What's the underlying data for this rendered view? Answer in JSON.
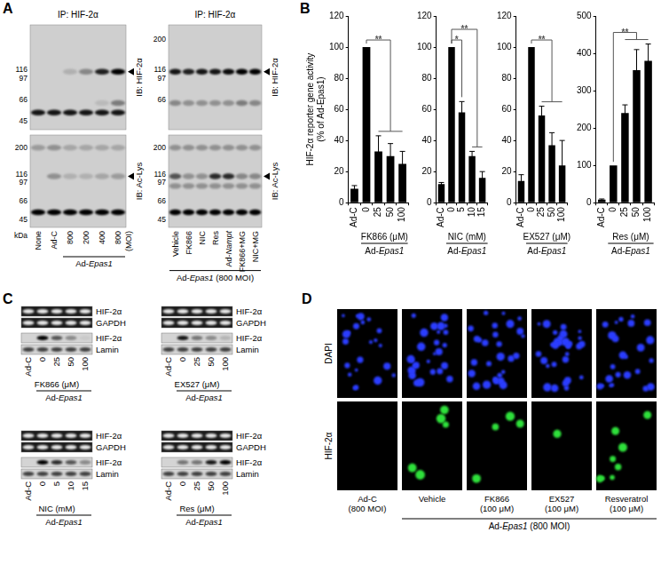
{
  "chart_data": [
    {
      "type": "bar",
      "y_label": [
        "HIF-2α reporter gene activity",
        "(% of Ad-Epas1)"
      ],
      "x_label": "FK866 (μM)",
      "group_label": {
        "text": "Ad-Epas1",
        "from": "0",
        "to": "100"
      },
      "categories": [
        "Ad-C",
        "0",
        "25",
        "50",
        "100"
      ],
      "values": [
        9,
        100,
        33,
        30,
        25
      ],
      "errors": [
        2,
        0,
        10,
        8,
        8
      ],
      "color": "#000000",
      "ylim": [
        0,
        120
      ],
      "yticks": [
        0,
        20,
        40,
        60,
        80,
        100,
        120
      ],
      "grid": false,
      "significance": [
        {
          "from": "0",
          "to": [
            "25",
            "50",
            "100"
          ],
          "label": "**"
        }
      ]
    },
    {
      "type": "bar",
      "x_label": "NIC (mM)",
      "group_label": {
        "text": "Ad-Epas1",
        "from": "0",
        "to": "15"
      },
      "categories": [
        "Ad-C",
        "0",
        "5",
        "10",
        "15"
      ],
      "values": [
        12,
        100,
        58,
        30,
        16
      ],
      "errors": [
        1,
        0,
        7,
        3,
        4
      ],
      "color": "#000000",
      "ylim": [
        0,
        120
      ],
      "yticks": [
        0,
        20,
        40,
        60,
        80,
        100,
        120
      ],
      "grid": false,
      "significance": [
        {
          "from": "0",
          "to": [
            "5"
          ],
          "label": "*"
        },
        {
          "from": "0",
          "to": [
            "10",
            "15"
          ],
          "label": "**"
        }
      ]
    },
    {
      "type": "bar",
      "x_label": "EX527 (μM)",
      "group_label": {
        "text": "Ad-Epas1",
        "from": "0",
        "to": "100"
      },
      "categories": [
        "Ad-C",
        "0",
        "25",
        "50",
        "100"
      ],
      "values": [
        14,
        100,
        56,
        37,
        24
      ],
      "errors": [
        4,
        0,
        6,
        8,
        16
      ],
      "color": "#000000",
      "ylim": [
        0,
        120
      ],
      "yticks": [
        0,
        20,
        40,
        60,
        80,
        100,
        120
      ],
      "grid": false,
      "significance": [
        {
          "from": "0",
          "to": [
            "25",
            "50",
            "100"
          ],
          "label": "**"
        }
      ]
    },
    {
      "type": "bar",
      "x_label": "Res (μM)",
      "group_label": {
        "text": "Ad-Epas1",
        "from": "0",
        "to": "100"
      },
      "categories": [
        "Ad-C",
        "0",
        "25",
        "50",
        "100"
      ],
      "values": [
        8,
        100,
        240,
        355,
        380
      ],
      "errors": [
        2,
        0,
        22,
        55,
        45
      ],
      "color": "#000000",
      "ylim": [
        0,
        500
      ],
      "yticks": [
        0,
        100,
        200,
        300,
        400,
        500
      ],
      "grid": false,
      "significance": [
        {
          "from": "0",
          "to": [
            "25",
            "50",
            "100"
          ],
          "label": "**"
        }
      ]
    }
  ],
  "panels": {
    "A": {
      "letter": "A",
      "blots": [
        {
          "title": "IP: HIF-2α",
          "lanes": [
            "None",
            "Ad-C",
            "800",
            "200",
            "400",
            "800"
          ],
          "lane_suffix": "(MOI)",
          "group": {
            "text": "Ad-Epas1",
            "from": 2,
            "to": 5
          },
          "kda_label": "kDa",
          "strips": [
            {
              "label": "IB: HIF-2α",
              "markers": [
                116,
                97,
                66,
                45
              ],
              "arrow": 110,
              "bands": [
                {
                  "kda": 110,
                  "intensity": [
                    0,
                    0,
                    0.15,
                    0.35,
                    0.85,
                    1
                  ]
                },
                {
                  "kda": 62,
                  "intensity": [
                    0,
                    0,
                    0,
                    0,
                    0.1,
                    0.4
                  ]
                },
                {
                  "kda": 52,
                  "intensity": [
                    0.9,
                    0.9,
                    0.9,
                    0.9,
                    0.9,
                    0.9
                  ]
                }
              ]
            },
            {
              "label": "IB: Ac-Lys",
              "markers": [
                200,
                116,
                97,
                66,
                45
              ],
              "arrow": 110,
              "bands": [
                {
                  "kda": 200,
                  "intensity": [
                    0.25,
                    0.3,
                    0.2,
                    0.2,
                    0.2,
                    0.2
                  ]
                },
                {
                  "kda": 110,
                  "intensity": [
                    0,
                    0.3,
                    0.15,
                    0.15,
                    0.2,
                    0.25
                  ]
                },
                {
                  "kda": 52,
                  "intensity": [
                    1,
                    1,
                    1,
                    1,
                    1,
                    1
                  ]
                }
              ]
            }
          ]
        },
        {
          "title": "IP: HIF-2α",
          "lanes": [
            "Vehicle",
            "FK866",
            "NIC",
            "Res",
            "Ad-Nampt",
            "FK866+MG",
            "NIC+MG"
          ],
          "group": {
            "text": "Ad-Epas1 (800 MOI)",
            "from": 0,
            "to": 6
          },
          "strips": [
            {
              "label": "IB: HIF-2α",
              "markers": [
                200,
                116,
                97,
                66
              ],
              "arrow": 110,
              "bands": [
                {
                  "kda": 110,
                  "intensity": [
                    0.9,
                    0.85,
                    0.9,
                    0.9,
                    0.95,
                    1,
                    1
                  ]
                },
                {
                  "kda": 62,
                  "intensity": [
                    0.35,
                    0.3,
                    0.3,
                    0.3,
                    0.3,
                    0.4,
                    0.35
                  ]
                }
              ]
            },
            {
              "label": "IB: Ac-Lys",
              "markers": [
                200,
                116,
                97,
                66,
                45
              ],
              "arrow": 110,
              "bands": [
                {
                  "kda": 200,
                  "intensity": [
                    0.3,
                    0.3,
                    0.3,
                    0.3,
                    0.3,
                    0.3,
                    0.3
                  ]
                },
                {
                  "kda": 110,
                  "intensity": [
                    0.6,
                    0.3,
                    0.3,
                    0.8,
                    0.8,
                    0.35,
                    0.35
                  ]
                },
                {
                  "kda": 90,
                  "intensity": [
                    0.3,
                    0.3,
                    0.3,
                    0.3,
                    0.3,
                    0.3,
                    0.3
                  ]
                },
                {
                  "kda": 52,
                  "intensity": [
                    1,
                    1,
                    1,
                    1,
                    1,
                    1,
                    1
                  ]
                }
              ]
            }
          ]
        }
      ]
    },
    "B": {
      "letter": "B"
    },
    "C": {
      "letter": "C",
      "blots": [
        {
          "lanes": [
            "Ad-C",
            "0",
            "25",
            "50",
            "100"
          ],
          "treatment": "FK866 (μM)",
          "group": {
            "text": "Ad-Epas1",
            "from": 1,
            "to": 4
          },
          "strips": [
            {
              "label": "HIF-2α",
              "kind": "gel",
              "intensity": [
                0.9,
                0.9,
                0.9,
                0.9,
                0.9
              ]
            },
            {
              "label": "GAPDH",
              "kind": "gel",
              "intensity": [
                0.9,
                0.9,
                0.9,
                0.9,
                0.9
              ]
            },
            {
              "label": "HIF-2α",
              "kind": "blot",
              "intensity": [
                0,
                1,
                0.6,
                0.35,
                0.05
              ]
            },
            {
              "label": "Lamin",
              "kind": "blot",
              "intensity": [
                0.7,
                0.7,
                0.7,
                0.7,
                0.7
              ]
            }
          ]
        },
        {
          "lanes": [
            "Ad-C",
            "0",
            "25",
            "50",
            "100"
          ],
          "treatment": "EX527 (μM)",
          "group": {
            "text": "Ad-Epas1",
            "from": 1,
            "to": 4
          },
          "strips": [
            {
              "label": "HIF-2α",
              "kind": "gel",
              "intensity": [
                0.9,
                0.9,
                0.9,
                0.9,
                0.9
              ]
            },
            {
              "label": "GAPDH",
              "kind": "gel",
              "intensity": [
                0.9,
                0.9,
                0.9,
                0.9,
                0.9
              ]
            },
            {
              "label": "HIF-2α",
              "kind": "blot",
              "intensity": [
                0,
                0.9,
                0.45,
                0.35,
                0.15
              ]
            },
            {
              "label": "Lamin",
              "kind": "blot",
              "intensity": [
                0.7,
                0.7,
                0.7,
                0.7,
                0.7
              ]
            }
          ]
        },
        {
          "lanes": [
            "Ad-C",
            "0",
            "5",
            "10",
            "15"
          ],
          "treatment": "NIC (mM)",
          "group": {
            "text": "Ad-Epas1",
            "from": 1,
            "to": 4
          },
          "strips": [
            {
              "label": "HIF-2α",
              "kind": "gel",
              "intensity": [
                0.9,
                0.9,
                0.9,
                0.9,
                0.9
              ]
            },
            {
              "label": "GAPDH",
              "kind": "gel",
              "intensity": [
                0.9,
                0.9,
                0.9,
                0.9,
                0.9
              ]
            },
            {
              "label": "HIF-2α",
              "kind": "blot",
              "intensity": [
                0,
                1,
                0.8,
                0.6,
                0.35
              ]
            },
            {
              "label": "Lamin",
              "kind": "blot",
              "intensity": [
                0.7,
                0.7,
                0.7,
                0.7,
                0.7
              ]
            }
          ]
        },
        {
          "lanes": [
            "Ad-C",
            "0",
            "25",
            "50",
            "100"
          ],
          "treatment": "Res (μM)",
          "group": {
            "text": "Ad-Epas1",
            "from": 1,
            "to": 4
          },
          "strips": [
            {
              "label": "HIF-2α",
              "kind": "gel",
              "intensity": [
                0.9,
                0.9,
                0.9,
                0.9,
                0.9
              ]
            },
            {
              "label": "GAPDH",
              "kind": "gel",
              "intensity": [
                0.9,
                0.9,
                0.9,
                0.9,
                0.9
              ]
            },
            {
              "label": "HIF-2α",
              "kind": "blot",
              "intensity": [
                0,
                0.45,
                0.45,
                0.9,
                1
              ]
            },
            {
              "label": "Lamin",
              "kind": "blot",
              "intensity": [
                0.7,
                0.7,
                0.7,
                0.7,
                0.7
              ]
            }
          ]
        }
      ]
    },
    "D": {
      "letter": "D",
      "rows": [
        "DAPI",
        "HIF-2α"
      ],
      "columns": [
        {
          "label": [
            "Ad-C",
            "(800 MOI)"
          ],
          "dapi_cells": 22,
          "hif_cells": 0
        },
        {
          "label": [
            "Vehicle"
          ],
          "dapi_cells": 26,
          "hif_cells": 5
        },
        {
          "label": [
            "FK866",
            "(100 μM)"
          ],
          "dapi_cells": 28,
          "hif_cells": 4
        },
        {
          "label": [
            "EX527",
            "(100 μM)"
          ],
          "dapi_cells": 30,
          "hif_cells": 1
        },
        {
          "label": [
            "Resveratrol",
            "(100 μM)"
          ],
          "dapi_cells": 24,
          "hif_cells": 8
        }
      ],
      "group": {
        "text": "Ad-Epas1 (800 MOI)",
        "from": 1,
        "to": 4
      }
    }
  }
}
